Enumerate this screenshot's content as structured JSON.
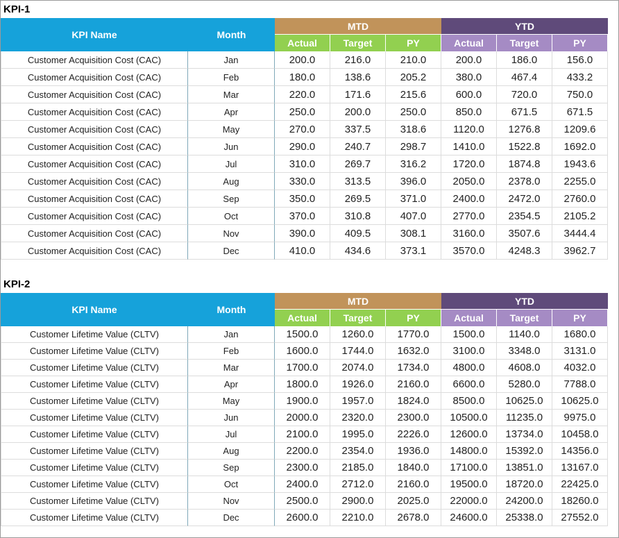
{
  "sections": [
    {
      "title": "KPI-1",
      "table": {
        "headers": {
          "kpi_name": "KPI Name",
          "month": "Month",
          "mtd": "MTD",
          "ytd": "YTD",
          "sub": [
            "Actual",
            "Target",
            "PY",
            "Actual",
            "Target",
            "PY"
          ]
        },
        "rows": [
          [
            "Customer Acquisition Cost (CAC)",
            "Jan",
            "200.0",
            "216.0",
            "210.0",
            "200.0",
            "186.0",
            "156.0"
          ],
          [
            "Customer Acquisition Cost (CAC)",
            "Feb",
            "180.0",
            "138.6",
            "205.2",
            "380.0",
            "467.4",
            "433.2"
          ],
          [
            "Customer Acquisition Cost (CAC)",
            "Mar",
            "220.0",
            "171.6",
            "215.6",
            "600.0",
            "720.0",
            "750.0"
          ],
          [
            "Customer Acquisition Cost (CAC)",
            "Apr",
            "250.0",
            "200.0",
            "250.0",
            "850.0",
            "671.5",
            "671.5"
          ],
          [
            "Customer Acquisition Cost (CAC)",
            "May",
            "270.0",
            "337.5",
            "318.6",
            "1120.0",
            "1276.8",
            "1209.6"
          ],
          [
            "Customer Acquisition Cost (CAC)",
            "Jun",
            "290.0",
            "240.7",
            "298.7",
            "1410.0",
            "1522.8",
            "1692.0"
          ],
          [
            "Customer Acquisition Cost (CAC)",
            "Jul",
            "310.0",
            "269.7",
            "316.2",
            "1720.0",
            "1874.8",
            "1943.6"
          ],
          [
            "Customer Acquisition Cost (CAC)",
            "Aug",
            "330.0",
            "313.5",
            "396.0",
            "2050.0",
            "2378.0",
            "2255.0"
          ],
          [
            "Customer Acquisition Cost (CAC)",
            "Sep",
            "350.0",
            "269.5",
            "371.0",
            "2400.0",
            "2472.0",
            "2760.0"
          ],
          [
            "Customer Acquisition Cost (CAC)",
            "Oct",
            "370.0",
            "310.8",
            "407.0",
            "2770.0",
            "2354.5",
            "2105.2"
          ],
          [
            "Customer Acquisition Cost (CAC)",
            "Nov",
            "390.0",
            "409.5",
            "308.1",
            "3160.0",
            "3507.6",
            "3444.4"
          ],
          [
            "Customer Acquisition Cost (CAC)",
            "Dec",
            "410.0",
            "434.6",
            "373.1",
            "3570.0",
            "4248.3",
            "3962.7"
          ]
        ]
      }
    },
    {
      "title": "KPI-2",
      "table": {
        "headers": {
          "kpi_name": "KPI Name",
          "month": "Month",
          "mtd": "MTD",
          "ytd": "YTD",
          "sub": [
            "Actual",
            "Target",
            "PY",
            "Actual",
            "Target",
            "PY"
          ]
        },
        "rows": [
          [
            "Customer Lifetime Value (CLTV)",
            "Jan",
            "1500.0",
            "1260.0",
            "1770.0",
            "1500.0",
            "1140.0",
            "1680.0"
          ],
          [
            "Customer Lifetime Value (CLTV)",
            "Feb",
            "1600.0",
            "1744.0",
            "1632.0",
            "3100.0",
            "3348.0",
            "3131.0"
          ],
          [
            "Customer Lifetime Value (CLTV)",
            "Mar",
            "1700.0",
            "2074.0",
            "1734.0",
            "4800.0",
            "4608.0",
            "4032.0"
          ],
          [
            "Customer Lifetime Value (CLTV)",
            "Apr",
            "1800.0",
            "1926.0",
            "2160.0",
            "6600.0",
            "5280.0",
            "7788.0"
          ],
          [
            "Customer Lifetime Value (CLTV)",
            "May",
            "1900.0",
            "1957.0",
            "1824.0",
            "8500.0",
            "10625.0",
            "10625.0"
          ],
          [
            "Customer Lifetime Value (CLTV)",
            "Jun",
            "2000.0",
            "2320.0",
            "2300.0",
            "10500.0",
            "11235.0",
            "9975.0"
          ],
          [
            "Customer Lifetime Value (CLTV)",
            "Jul",
            "2100.0",
            "1995.0",
            "2226.0",
            "12600.0",
            "13734.0",
            "10458.0"
          ],
          [
            "Customer Lifetime Value (CLTV)",
            "Aug",
            "2200.0",
            "2354.0",
            "1936.0",
            "14800.0",
            "15392.0",
            "14356.0"
          ],
          [
            "Customer Lifetime Value (CLTV)",
            "Sep",
            "2300.0",
            "2185.0",
            "1840.0",
            "17100.0",
            "13851.0",
            "13167.0"
          ],
          [
            "Customer Lifetime Value (CLTV)",
            "Oct",
            "2400.0",
            "2712.0",
            "2160.0",
            "19500.0",
            "18720.0",
            "22425.0"
          ],
          [
            "Customer Lifetime Value (CLTV)",
            "Nov",
            "2500.0",
            "2900.0",
            "2025.0",
            "22000.0",
            "24200.0",
            "18260.0"
          ],
          [
            "Customer Lifetime Value (CLTV)",
            "Dec",
            "2600.0",
            "2210.0",
            "2678.0",
            "24600.0",
            "25338.0",
            "27552.0"
          ]
        ]
      }
    }
  ]
}
